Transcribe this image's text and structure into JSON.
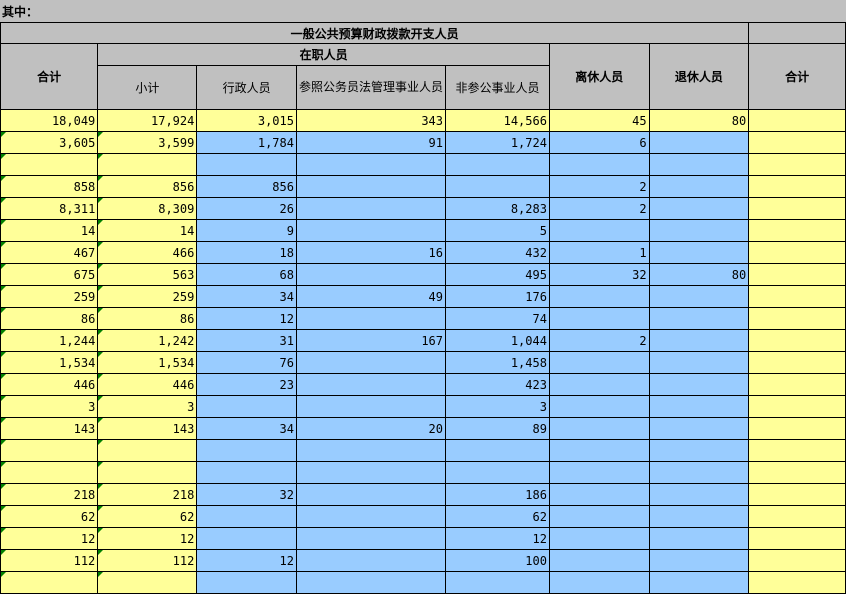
{
  "sheet": {
    "note": "其中：",
    "headers": {
      "group_title": "一般公共预算财政拨款开支人员",
      "total": "合计",
      "on_duty": "在职人员",
      "subtotal": "小计",
      "admin": "行政人员",
      "civil_ref": "参照公务员法管理事业人员",
      "non_civil": "非参公事业人员",
      "retired_leave": "离休人员",
      "retired": "退休人员",
      "total2": "合计"
    },
    "rows": [
      [
        "18,049",
        "17,924",
        "3,015",
        "343",
        "14,566",
        "45",
        "80",
        ""
      ],
      [
        "3,605",
        "3,599",
        "1,784",
        "91",
        "1,724",
        "6",
        "",
        ""
      ],
      [
        "",
        "",
        "",
        "",
        "",
        "",
        "",
        ""
      ],
      [
        "858",
        "856",
        "856",
        "",
        "",
        "2",
        "",
        ""
      ],
      [
        "8,311",
        "8,309",
        "26",
        "",
        "8,283",
        "2",
        "",
        ""
      ],
      [
        "14",
        "14",
        "9",
        "",
        "5",
        "",
        "",
        ""
      ],
      [
        "467",
        "466",
        "18",
        "16",
        "432",
        "1",
        "",
        ""
      ],
      [
        "675",
        "563",
        "68",
        "",
        "495",
        "32",
        "80",
        ""
      ],
      [
        "259",
        "259",
        "34",
        "49",
        "176",
        "",
        "",
        ""
      ],
      [
        "86",
        "86",
        "12",
        "",
        "74",
        "",
        "",
        ""
      ],
      [
        "1,244",
        "1,242",
        "31",
        "167",
        "1,044",
        "2",
        "",
        ""
      ],
      [
        "1,534",
        "1,534",
        "76",
        "",
        "1,458",
        "",
        "",
        ""
      ],
      [
        "446",
        "446",
        "23",
        "",
        "423",
        "",
        "",
        ""
      ],
      [
        "3",
        "3",
        "",
        "",
        "3",
        "",
        "",
        ""
      ],
      [
        "143",
        "143",
        "34",
        "20",
        "89",
        "",
        "",
        ""
      ],
      [
        "",
        "",
        "",
        "",
        "",
        "",
        "",
        ""
      ],
      [
        "",
        "",
        "",
        "",
        "",
        "",
        "",
        ""
      ],
      [
        "218",
        "218",
        "32",
        "",
        "186",
        "",
        "",
        ""
      ],
      [
        "62",
        "62",
        "",
        "",
        "62",
        "",
        "",
        ""
      ],
      [
        "12",
        "12",
        "",
        "",
        "12",
        "",
        "",
        ""
      ],
      [
        "112",
        "112",
        "12",
        "",
        "100",
        "",
        "",
        ""
      ],
      [
        "",
        "",
        "",
        "",
        "",
        "",
        "",
        ""
      ]
    ]
  }
}
